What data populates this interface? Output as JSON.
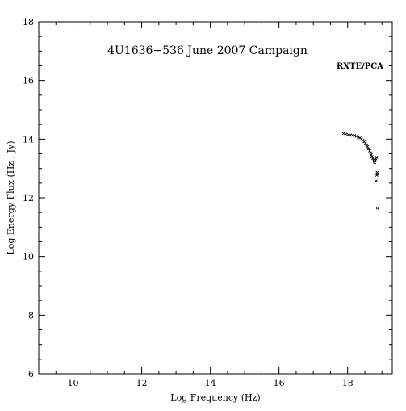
{
  "chart_data": {
    "type": "scatter",
    "title": "4U1636−536 June 2007 Campaign",
    "annotation": "RXTE/PCA",
    "xlabel": "Log Frequency (Hz)",
    "ylabel": "Log Energy Flux (Hz . Jy)",
    "xlim": [
      9,
      19.3
    ],
    "ylim": [
      6,
      18
    ],
    "x_major_ticks": [
      10,
      12,
      14,
      16,
      18
    ],
    "x_minor_step": 0.5,
    "y_major_ticks": [
      6,
      8,
      10,
      12,
      14,
      16,
      18
    ],
    "y_minor_step": 0.5,
    "x_tick_labels": [
      "10",
      "12",
      "14",
      "16",
      "18"
    ],
    "y_tick_labels": [
      "6",
      "8",
      "10",
      "12",
      "14",
      "16",
      "18"
    ],
    "grid": false,
    "series": [
      {
        "marker": "cross",
        "color": "#000000",
        "x": [
          17.88,
          17.95,
          18.02,
          18.08,
          18.14,
          18.2,
          18.26,
          18.31,
          18.36,
          18.4,
          18.44,
          18.48,
          18.52,
          18.55,
          18.58,
          18.61,
          18.64,
          18.67,
          18.69,
          18.71,
          18.73,
          18.75,
          18.77,
          18.79,
          18.81,
          18.82,
          18.84,
          18.86,
          18.86,
          18.85,
          18.83,
          18.87
        ],
        "y": [
          14.19,
          14.17,
          14.15,
          14.14,
          14.13,
          14.12,
          14.1,
          14.07,
          14.04,
          14.0,
          13.96,
          13.91,
          13.86,
          13.8,
          13.74,
          13.67,
          13.6,
          13.53,
          13.46,
          13.4,
          13.35,
          13.29,
          13.24,
          13.2,
          13.28,
          13.33,
          13.38,
          12.87,
          12.81,
          12.77,
          12.57,
          11.65
        ]
      }
    ]
  },
  "colors": {
    "background": "#ffffff",
    "ink": "#000000"
  }
}
